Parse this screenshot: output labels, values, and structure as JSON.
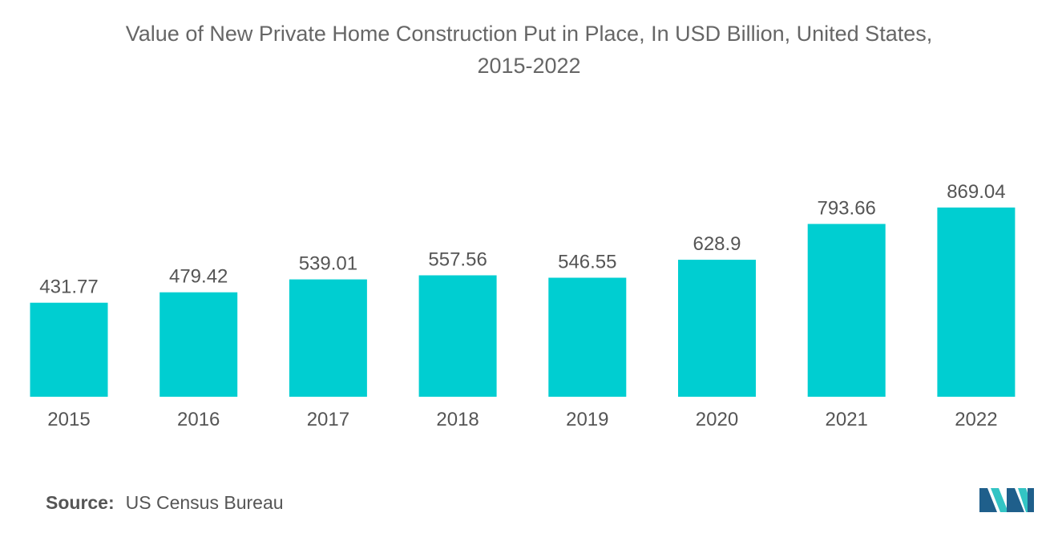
{
  "chart_data": {
    "type": "bar",
    "title_line1": "Value of New Private Home Construction Put in Place, In USD Billion, United States,",
    "title_line2": "2015-2022",
    "categories": [
      "2015",
      "2016",
      "2017",
      "2018",
      "2019",
      "2020",
      "2021",
      "2022"
    ],
    "values": [
      431.77,
      479.42,
      539.01,
      557.56,
      546.55,
      628.9,
      793.66,
      869.04
    ],
    "value_labels": [
      "431.77",
      "479.42",
      "539.01",
      "557.56",
      "546.55",
      "628.9",
      "793.66",
      "869.04"
    ],
    "xlabel": "",
    "ylabel": "",
    "grid": false,
    "legend": "none",
    "colors": {
      "bar": "#00CED1",
      "text": "#555555",
      "title": "#666666"
    }
  },
  "source": {
    "label": "Source:",
    "value": "US Census Bureau"
  },
  "logo": {
    "icon": "mordor-intelligence-logo-icon",
    "colors": [
      "#1f5f8b",
      "#33c4c4"
    ]
  }
}
